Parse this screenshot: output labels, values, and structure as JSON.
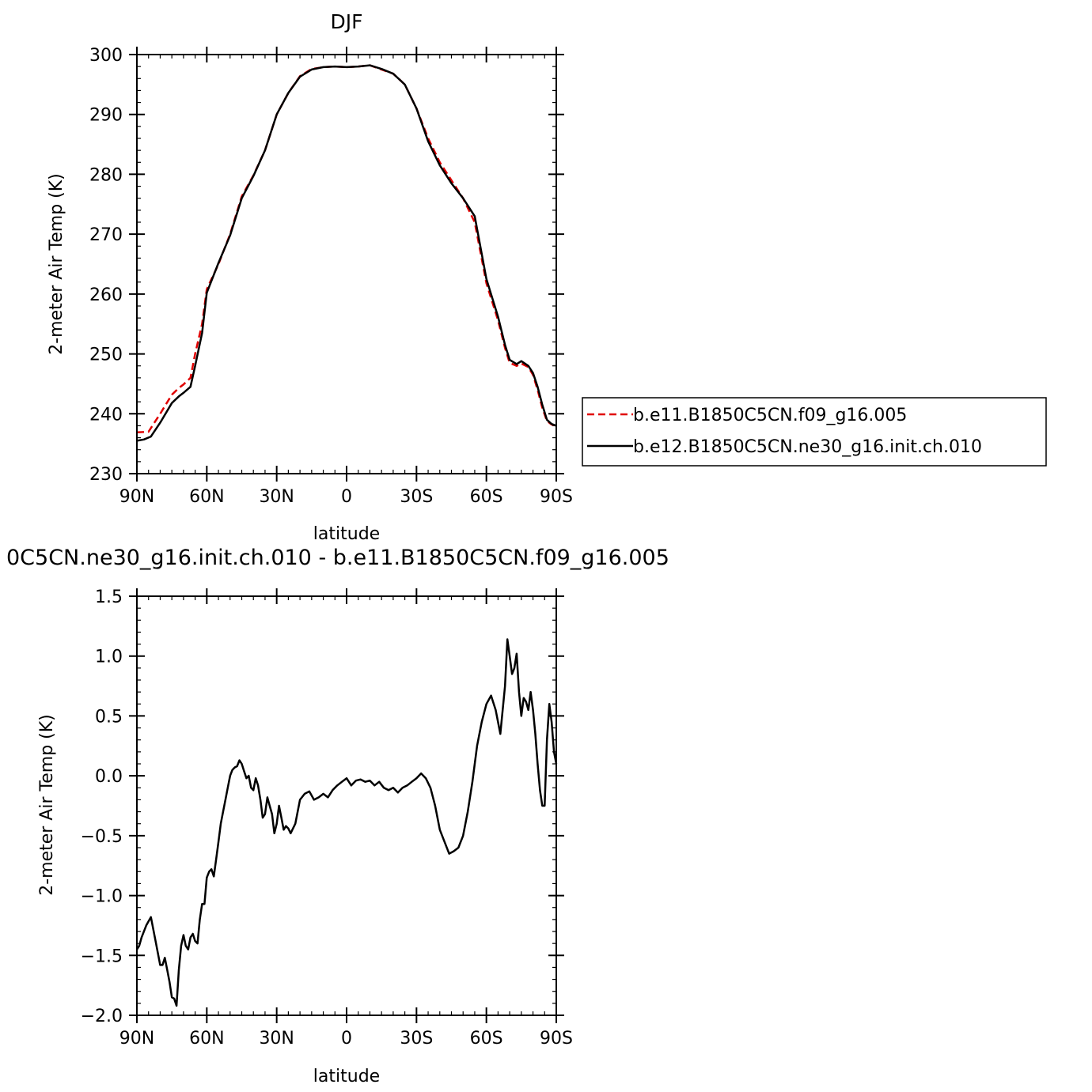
{
  "chart_data": [
    {
      "type": "line",
      "title": "DJF",
      "xlabel": "latitude",
      "ylabel": "2-meter Air Temp (K)",
      "xlim": [
        90,
        -90
      ],
      "ylim": [
        230,
        300
      ],
      "x_ticks": [
        90,
        60,
        30,
        0,
        -30,
        -60,
        -90
      ],
      "x_tick_labels": [
        "90N",
        "60N",
        "30N",
        "0",
        "30S",
        "60S",
        "90S"
      ],
      "y_ticks": [
        230,
        240,
        250,
        260,
        270,
        280,
        290,
        300
      ],
      "y_tick_labels": [
        "230",
        "240",
        "250",
        "260",
        "270",
        "280",
        "290",
        "300"
      ],
      "legend_position": "right",
      "series": [
        {
          "name": "b.e11.B1850C5CN.f09_g16.005",
          "color": "#e00000",
          "dash": "dashed",
          "x": [
            90,
            85,
            80,
            75,
            72,
            70,
            67,
            65,
            62,
            60,
            55,
            50,
            45,
            40,
            35,
            30,
            25,
            20,
            15,
            10,
            5,
            0,
            -5,
            -10,
            -15,
            -20,
            -25,
            -30,
            -35,
            -40,
            -45,
            -50,
            -55,
            -60,
            -65,
            -68,
            -70,
            -73,
            -75,
            -78,
            -80,
            -82,
            -84,
            -86,
            -88,
            -90
          ],
          "y": [
            236.9,
            237.0,
            240.0,
            243.2,
            244.3,
            244.9,
            246.0,
            250.0,
            255.0,
            260.8,
            265.0,
            270.0,
            276.3,
            279.8,
            284.0,
            290.0,
            293.6,
            296.4,
            297.6,
            297.9,
            298.0,
            297.9,
            298.0,
            298.2,
            297.5,
            296.8,
            295.0,
            291.0,
            286.0,
            282.0,
            279.0,
            276.0,
            272.0,
            261.8,
            255.6,
            251.0,
            248.5,
            248.0,
            248.4,
            247.8,
            246.5,
            244.0,
            241.0,
            238.8,
            238.2,
            238.0
          ]
        },
        {
          "name": "b.e12.B1850C5CN.ne30_g16.init.ch.010",
          "color": "#000000",
          "dash": "solid",
          "x": [
            90,
            87,
            84,
            80,
            75,
            72,
            70,
            67,
            65,
            62,
            60,
            55,
            50,
            45,
            40,
            35,
            30,
            25,
            20,
            15,
            10,
            5,
            0,
            -5,
            -10,
            -15,
            -20,
            -25,
            -30,
            -35,
            -40,
            -45,
            -50,
            -55,
            -60,
            -65,
            -68,
            -70,
            -73,
            -75,
            -78,
            -80,
            -82,
            -84,
            -86,
            -88,
            -90
          ],
          "y": [
            235.5,
            235.7,
            236.2,
            238.5,
            241.8,
            242.9,
            243.5,
            244.5,
            248.0,
            253.5,
            260.2,
            265.2,
            269.8,
            276.0,
            279.7,
            284.0,
            290.0,
            293.6,
            296.3,
            297.5,
            297.9,
            298.0,
            297.9,
            298.0,
            298.2,
            297.6,
            296.8,
            295.0,
            291.0,
            285.5,
            281.5,
            278.5,
            276.0,
            273.0,
            262.5,
            256.2,
            251.5,
            249.0,
            248.3,
            248.8,
            248.0,
            246.8,
            244.5,
            241.5,
            239.0,
            238.3,
            238.0
          ]
        }
      ]
    },
    {
      "type": "line",
      "title": "0C5CN.ne30_g16.init.ch.010 - b.e11.B1850C5CN.f09_g16.005",
      "xlabel": "latitude",
      "ylabel": "2-meter Air Temp (K)",
      "xlim": [
        90,
        -90
      ],
      "ylim": [
        -2.0,
        1.5
      ],
      "x_ticks": [
        90,
        60,
        30,
        0,
        -30,
        -60,
        -90
      ],
      "x_tick_labels": [
        "90N",
        "60N",
        "30N",
        "0",
        "30S",
        "60S",
        "90S"
      ],
      "y_ticks": [
        -2.0,
        -1.5,
        -1.0,
        -0.5,
        0.0,
        0.5,
        1.0,
        1.5
      ],
      "y_tick_labels": [
        "−2.0",
        "−1.5",
        "−1.0",
        "−0.5",
        "0.0",
        "0.5",
        "1.0",
        "1.5"
      ],
      "series": [
        {
          "color": "#000000",
          "dash": "solid",
          "x": [
            90,
            89,
            88,
            86,
            84,
            82,
            80,
            79,
            78,
            77,
            76,
            75,
            74,
            73,
            72,
            71,
            70,
            69,
            68,
            67,
            66,
            65,
            64,
            63,
            62,
            61,
            60,
            59,
            58,
            57,
            56,
            55,
            54,
            53,
            52,
            51,
            50,
            49,
            48,
            47,
            46,
            45,
            44,
            43,
            42,
            41,
            40,
            39,
            38,
            37,
            36,
            35,
            34,
            33,
            32,
            31,
            30,
            29,
            28,
            27,
            26,
            25,
            24,
            22,
            20,
            18,
            16,
            14,
            12,
            10,
            8,
            6,
            4,
            2,
            0,
            -2,
            -4,
            -6,
            -8,
            -10,
            -12,
            -14,
            -16,
            -18,
            -20,
            -22,
            -24,
            -26,
            -28,
            -30,
            -32,
            -34,
            -36,
            -38,
            -40,
            -42,
            -44,
            -46,
            -48,
            -50,
            -52,
            -54,
            -56,
            -58,
            -60,
            -62,
            -64,
            -66,
            -68,
            -69,
            -70,
            -71,
            -72,
            -73,
            -74,
            -75,
            -76,
            -77,
            -78,
            -79,
            -80,
            -81,
            -82,
            -83,
            -84,
            -85,
            -86,
            -87,
            -88,
            -89,
            -90
          ],
          "y": [
            -1.45,
            -1.42,
            -1.35,
            -1.25,
            -1.18,
            -1.38,
            -1.58,
            -1.58,
            -1.52,
            -1.62,
            -1.72,
            -1.85,
            -1.86,
            -1.92,
            -1.62,
            -1.42,
            -1.33,
            -1.42,
            -1.45,
            -1.35,
            -1.32,
            -1.38,
            -1.4,
            -1.2,
            -1.07,
            -1.07,
            -0.85,
            -0.8,
            -0.78,
            -0.84,
            -0.7,
            -0.55,
            -0.4,
            -0.3,
            -0.2,
            -0.1,
            0.0,
            0.05,
            0.07,
            0.08,
            0.13,
            0.1,
            0.04,
            -0.02,
            0.0,
            -0.1,
            -0.12,
            -0.02,
            -0.08,
            -0.2,
            -0.35,
            -0.32,
            -0.18,
            -0.25,
            -0.32,
            -0.48,
            -0.4,
            -0.25,
            -0.35,
            -0.45,
            -0.42,
            -0.44,
            -0.48,
            -0.4,
            -0.2,
            -0.15,
            -0.13,
            -0.2,
            -0.18,
            -0.15,
            -0.18,
            -0.12,
            -0.08,
            -0.05,
            -0.02,
            -0.08,
            -0.04,
            -0.03,
            -0.05,
            -0.04,
            -0.08,
            -0.05,
            -0.1,
            -0.12,
            -0.1,
            -0.14,
            -0.1,
            -0.08,
            -0.05,
            -0.02,
            0.02,
            -0.02,
            -0.1,
            -0.25,
            -0.45,
            -0.55,
            -0.65,
            -0.63,
            -0.6,
            -0.5,
            -0.3,
            -0.05,
            0.25,
            0.45,
            0.6,
            0.67,
            0.55,
            0.35,
            0.75,
            1.14,
            1.0,
            0.85,
            0.9,
            1.02,
            0.7,
            0.5,
            0.65,
            0.62,
            0.55,
            0.7,
            0.55,
            0.35,
            0.1,
            -0.12,
            -0.25,
            -0.25,
            0.3,
            0.6,
            0.45,
            0.2,
            0.1
          ]
        }
      ]
    }
  ]
}
